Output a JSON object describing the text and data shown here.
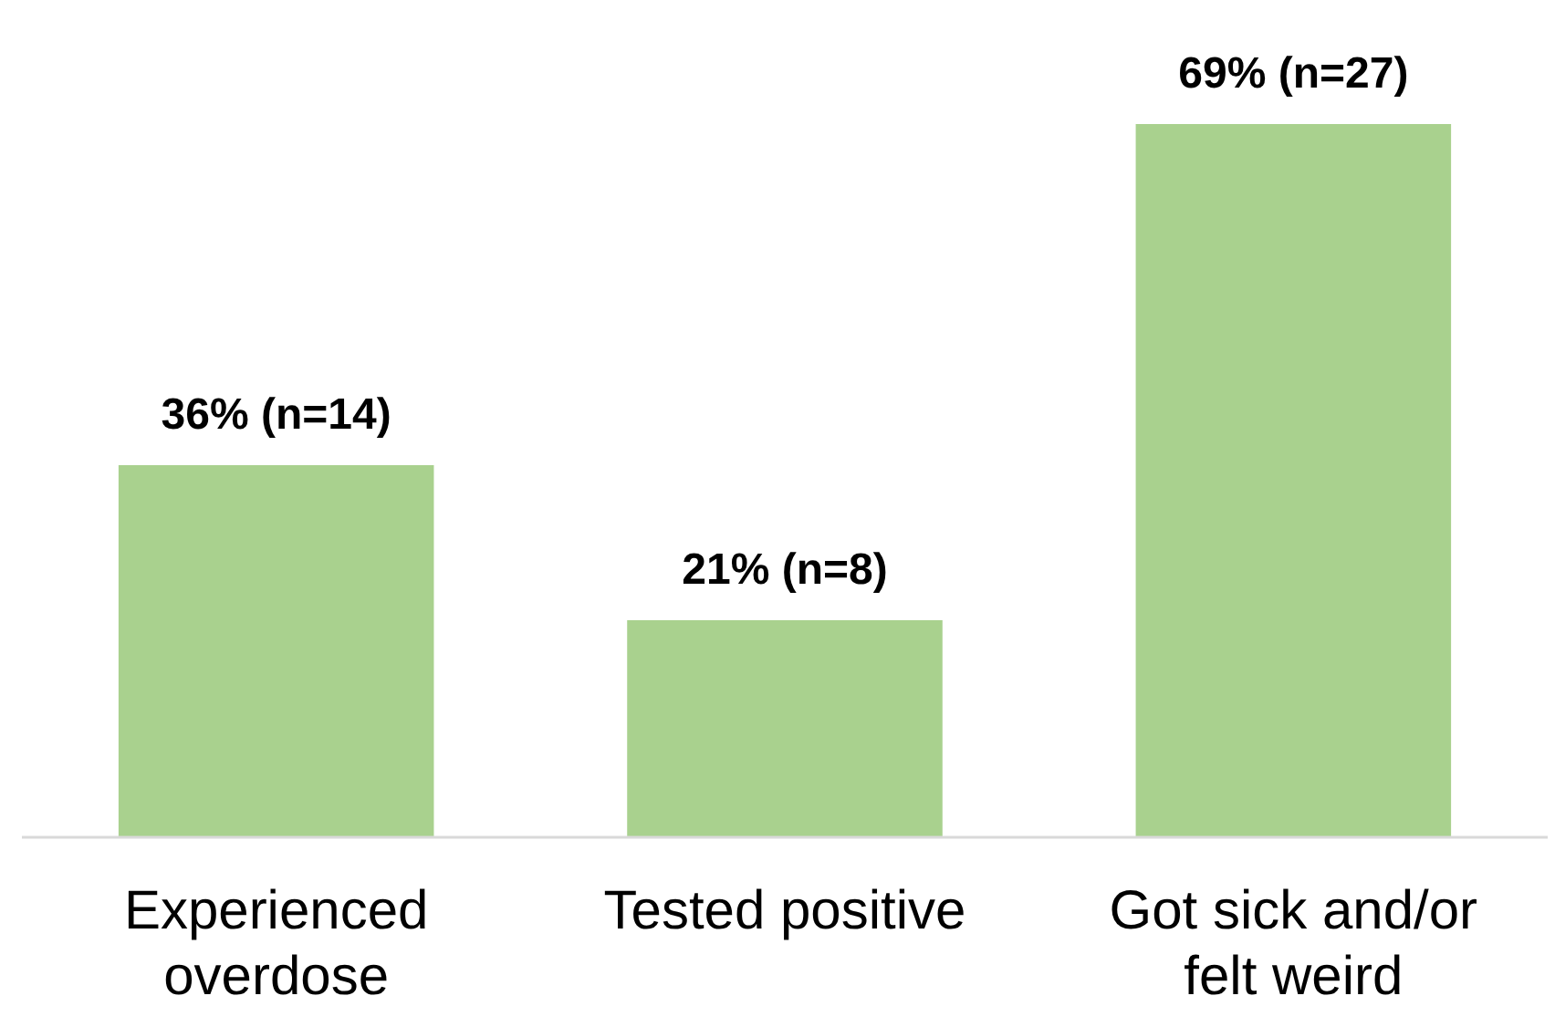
{
  "chart_data": {
    "type": "bar",
    "categories": [
      "Experienced overdose",
      "Tested positive",
      "Got sick and/or felt weird"
    ],
    "values": [
      36,
      21,
      69
    ],
    "value_labels": [
      "36% (n=14)",
      "21% (n=8)",
      "69% (n=27)"
    ],
    "color": "#a9d18e"
  }
}
